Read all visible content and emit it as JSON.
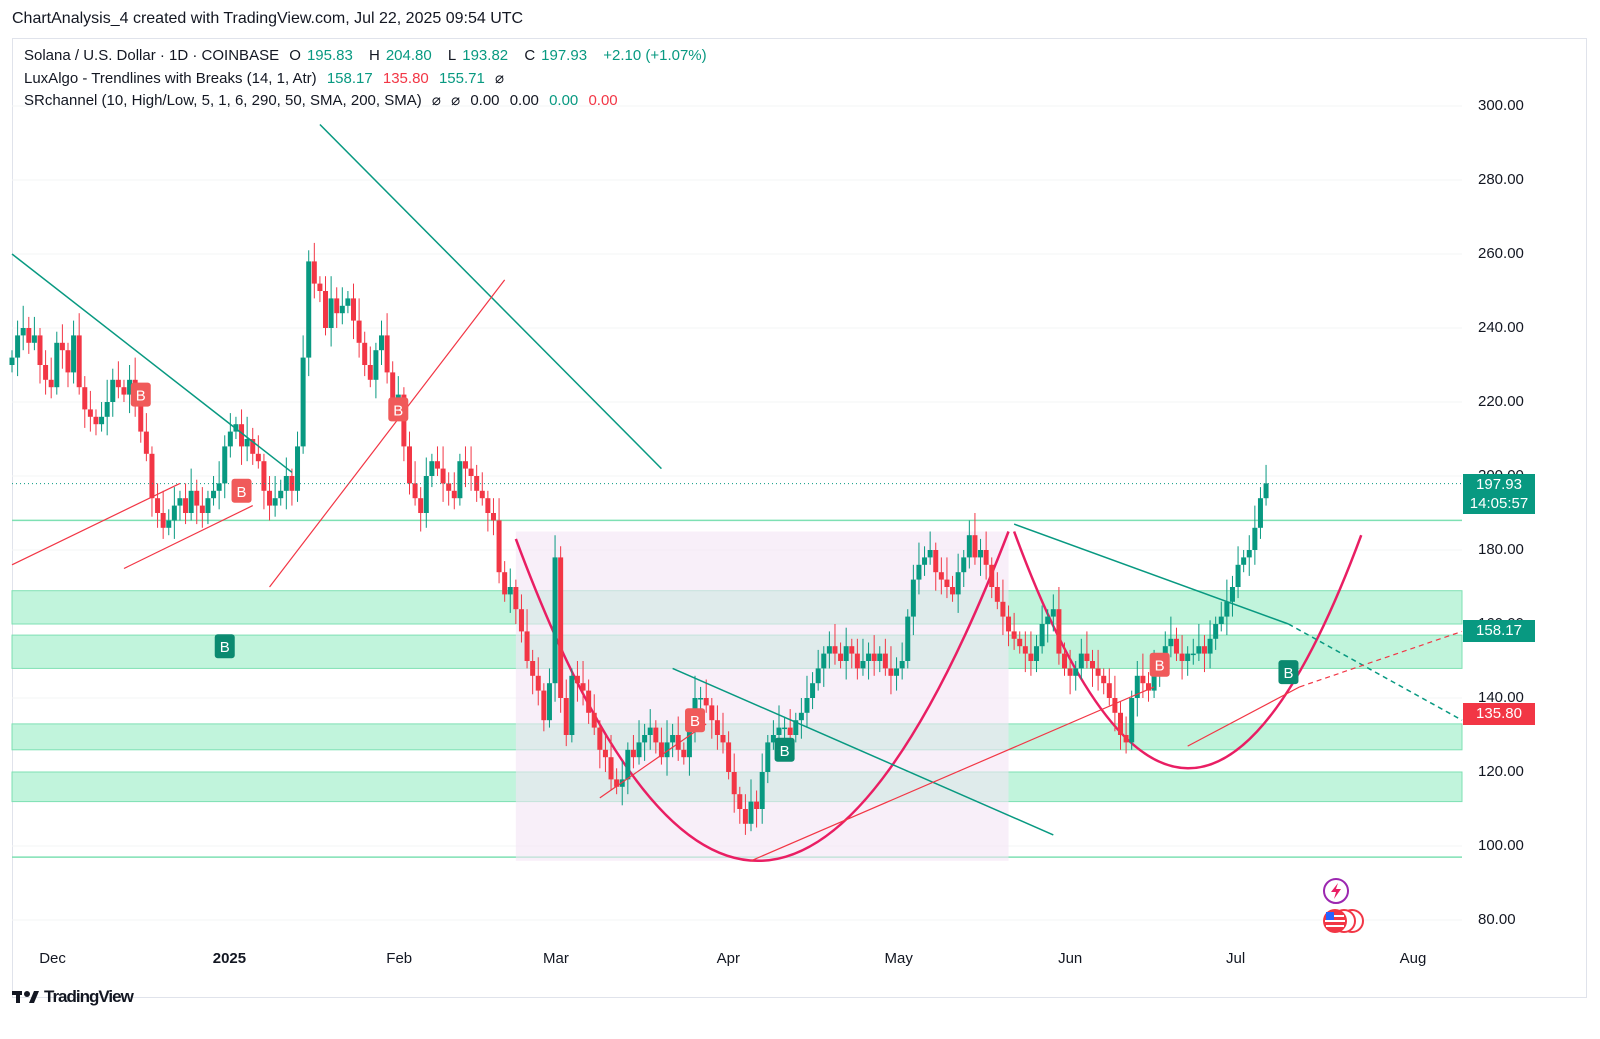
{
  "header": {
    "title": "ChartAnalysis_4 created with TradingView.com, Jul 22, 2025 09:54 UTC"
  },
  "legend": {
    "line1": {
      "symbol": "Solana / U.S. Dollar · 1D · COINBASE",
      "o_label": "O",
      "o": "195.83",
      "h_label": "H",
      "h": "204.80",
      "l_label": "L",
      "l": "193.82",
      "c_label": "C",
      "c": "197.93",
      "chg": "+2.10 (+1.07%)"
    },
    "line2": {
      "name": "LuxAlgo - Trendlines with Breaks (14, 1, Atr)",
      "v1": "158.17",
      "v2": "135.80",
      "v3": "155.71",
      "v4": "⌀"
    },
    "line3": {
      "name": "SRchannel (10, High/Low, 5, 1, 6, 290, 50, SMA, 200, SMA)",
      "v1": "⌀",
      "v2": "⌀",
      "v3": "0.00",
      "v4": "0.00",
      "v5": "0.00",
      "v6": "0.00"
    }
  },
  "footer": {
    "brand": "TradingView",
    "logo": "tradingview-logo"
  },
  "price_tags": {
    "last_price": "197.93",
    "countdown": "14:05:57",
    "upper_trend": "158.17",
    "lower_trend": "135.80"
  },
  "colors": {
    "up": "#089981",
    "down": "#f23645",
    "zone": "#b6f2d6",
    "cup": "#e91e63",
    "cup_fill": "#f3e5f5"
  },
  "chart_data": {
    "type": "candlestick",
    "title": "Solana / U.S. Dollar · 1D · COINBASE",
    "y_ticks": [
      "300.00",
      "280.00",
      "260.00",
      "240.00",
      "220.00",
      "200.00",
      "180.00",
      "160.00",
      "140.00",
      "120.00",
      "100.00",
      "80.00"
    ],
    "ylim": [
      75,
      315
    ],
    "x_ticks": [
      {
        "label": "Dec",
        "bold": false,
        "date": "2024-12-01"
      },
      {
        "label": "2025",
        "bold": true,
        "date": "2025-01-01"
      },
      {
        "label": "Feb",
        "bold": false,
        "date": "2025-02-01"
      },
      {
        "label": "Mar",
        "bold": false,
        "date": "2025-03-01"
      },
      {
        "label": "Apr",
        "bold": false,
        "date": "2025-04-01"
      },
      {
        "label": "May",
        "bold": false,
        "date": "2025-05-01"
      },
      {
        "label": "Jun",
        "bold": false,
        "date": "2025-06-01"
      },
      {
        "label": "Jul",
        "bold": false,
        "date": "2025-07-01"
      },
      {
        "label": "Aug",
        "bold": false,
        "date": "2025-08-01"
      }
    ],
    "xlim": [
      "2024-11-24",
      "2025-08-10"
    ],
    "closes": [
      232,
      238,
      240,
      236,
      238,
      230,
      226,
      224,
      236,
      234,
      228,
      238,
      224,
      218,
      216,
      214,
      216,
      220,
      226,
      224,
      222,
      226,
      220,
      212,
      206,
      194,
      190,
      186,
      188,
      192,
      194,
      190,
      196,
      192,
      190,
      194,
      196,
      198,
      208,
      212,
      214,
      208,
      210,
      206,
      204,
      196,
      192,
      194,
      196,
      200,
      196,
      208,
      232,
      258,
      252,
      250,
      240,
      248,
      244,
      246,
      248,
      242,
      236,
      230,
      226,
      234,
      238,
      228,
      220,
      222,
      208,
      198,
      194,
      190,
      200,
      204,
      202,
      198,
      196,
      194,
      204,
      202,
      200,
      196,
      194,
      190,
      188,
      174,
      168,
      170,
      164,
      158,
      150,
      146,
      142,
      134,
      144,
      178,
      140,
      130,
      146,
      144,
      142,
      136,
      132,
      126,
      124,
      118,
      116,
      118,
      126,
      124,
      128,
      130,
      132,
      128,
      124,
      128,
      130,
      126,
      124,
      132,
      140,
      140,
      138,
      134,
      130,
      128,
      120,
      114,
      110,
      106,
      112,
      110,
      120,
      128,
      130,
      132,
      132,
      130,
      134,
      136,
      140,
      144,
      148,
      152,
      154,
      152,
      150,
      154,
      152,
      148,
      150,
      152,
      150,
      152,
      148,
      146,
      148,
      150,
      162,
      172,
      176,
      178,
      180,
      174,
      172,
      170,
      168,
      174,
      178,
      184,
      178,
      180,
      176,
      170,
      166,
      162,
      158,
      156,
      154,
      152,
      150,
      154,
      160,
      162,
      164,
      152,
      148,
      146,
      148,
      152,
      150,
      148,
      146,
      144,
      140,
      136,
      130,
      128,
      140,
      146,
      144,
      142,
      148,
      150,
      154,
      156,
      152,
      150,
      152,
      152,
      154,
      152,
      156,
      160,
      162,
      166,
      170,
      176,
      178,
      180,
      186,
      194,
      198
    ],
    "annotations": {
      "buy_markers": [
        {
          "date": "2025-01-01",
          "price": 154
        },
        {
          "date": "2025-04-11",
          "price": 126
        },
        {
          "date": "2025-07-10",
          "price": 147
        }
      ],
      "break_markers": [
        {
          "date": "2024-12-17",
          "price": 222
        },
        {
          "date": "2025-01-04",
          "price": 196
        },
        {
          "date": "2025-02-01",
          "price": 218
        },
        {
          "date": "2025-03-26",
          "price": 134
        },
        {
          "date": "2025-06-17",
          "price": 149
        }
      ],
      "support_zones": [
        [
          160,
          169
        ],
        [
          148,
          157
        ],
        [
          126,
          133
        ],
        [
          112,
          120
        ]
      ],
      "horizontal_lines": [
        97,
        188
      ],
      "last_price_line": 197.93,
      "cup_pattern": [
        {
          "rim_left": {
            "date": "2025-02-22",
            "price": 183
          },
          "bottom": {
            "date": "2025-04-06",
            "price": 96
          },
          "rim_right": {
            "date": "2025-05-21",
            "price": 185
          }
        },
        {
          "rim_left": {
            "date": "2025-05-22",
            "price": 185
          },
          "bottom": {
            "date": "2025-06-22",
            "price": 121
          },
          "rim_right": {
            "date": "2025-07-23",
            "price": 184
          }
        }
      ],
      "trendlines_down": [
        {
          "from": {
            "date": "2024-11-24",
            "price": 260
          },
          "to": {
            "date": "2025-01-13",
            "price": 201
          }
        },
        {
          "from": {
            "date": "2025-01-18",
            "price": 295
          },
          "to": {
            "date": "2025-03-20",
            "price": 202
          }
        },
        {
          "from": {
            "date": "2025-03-22",
            "price": 148
          },
          "to": {
            "date": "2025-05-29",
            "price": 103
          }
        },
        {
          "from": {
            "date": "2025-05-22",
            "price": 187
          },
          "to": {
            "date": "2025-07-10",
            "price": 160
          }
        },
        {
          "from": {
            "date": "2025-07-10",
            "price": 160
          },
          "to": {
            "date": "2025-08-10",
            "price": 134
          }
        }
      ],
      "trendlines_up": [
        {
          "from": {
            "date": "2024-11-24",
            "price": 176
          },
          "to": {
            "date": "2024-12-24",
            "price": 198
          }
        },
        {
          "from": {
            "date": "2024-12-14",
            "price": 175
          },
          "to": {
            "date": "2025-01-06",
            "price": 192
          }
        },
        {
          "from": {
            "date": "2025-01-09",
            "price": 170
          },
          "to": {
            "date": "2025-02-20",
            "price": 253
          }
        },
        {
          "from": {
            "date": "2025-03-09",
            "price": 113
          },
          "to": {
            "date": "2025-03-28",
            "price": 133
          }
        },
        {
          "from": {
            "date": "2025-04-05",
            "price": 96
          },
          "to": {
            "date": "2025-06-16",
            "price": 143
          }
        },
        {
          "from": {
            "date": "2025-06-22",
            "price": 127
          },
          "to": {
            "date": "2025-07-12",
            "price": 143
          }
        },
        {
          "from": {
            "date": "2025-07-12",
            "price": 143
          },
          "to": {
            "date": "2025-08-10",
            "price": 158
          }
        }
      ]
    }
  }
}
